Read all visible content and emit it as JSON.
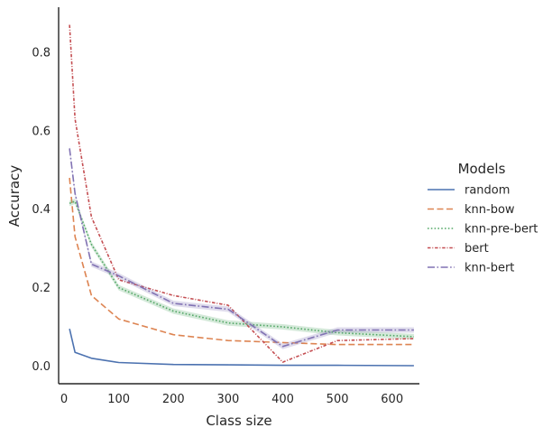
{
  "chart_data": {
    "type": "line",
    "title": "",
    "xlabel": "Class size",
    "ylabel": "Accuracy",
    "xlim": [
      -10,
      650
    ],
    "ylim": [
      -0.045,
      0.915
    ],
    "xticks": [
      0,
      100,
      200,
      300,
      400,
      500,
      600
    ],
    "yticks": [
      0.0,
      0.2,
      0.4,
      0.6,
      0.8
    ],
    "xtick_labels": [
      "0",
      "100",
      "200",
      "300",
      "400",
      "500",
      "600"
    ],
    "ytick_labels": [
      "0.0",
      "0.2",
      "0.4",
      "0.6",
      "0.8"
    ],
    "grid": false,
    "legend": {
      "title": "Models",
      "placement": "right"
    },
    "series": [
      {
        "name": "random",
        "color": "#4c72b0",
        "dash": "solid",
        "x": [
          10,
          20,
          50,
          100,
          200,
          300,
          400,
          500,
          640
        ],
        "y": [
          0.095,
          0.035,
          0.02,
          0.009,
          0.004,
          0.003,
          0.002,
          0.002,
          0.001
        ]
      },
      {
        "name": "knn-bow",
        "color": "#dd8452",
        "dash": "dashed",
        "x": [
          10,
          20,
          50,
          100,
          200,
          300,
          400,
          500,
          640
        ],
        "y": [
          0.48,
          0.33,
          0.18,
          0.12,
          0.08,
          0.065,
          0.06,
          0.055,
          0.055
        ]
      },
      {
        "name": "knn-pre-bert",
        "color": "#55a868",
        "dash": "dotted",
        "band": true,
        "x": [
          10,
          20,
          50,
          100,
          200,
          300,
          400,
          500,
          640
        ],
        "y": [
          0.415,
          0.42,
          0.31,
          0.2,
          0.14,
          0.11,
          0.1,
          0.085,
          0.075
        ]
      },
      {
        "name": "bert",
        "color": "#c44e52",
        "dash": "dash-dot-fine",
        "x": [
          10,
          20,
          50,
          100,
          200,
          300,
          400,
          500,
          640
        ],
        "y": [
          0.87,
          0.63,
          0.38,
          0.22,
          0.18,
          0.155,
          0.01,
          0.065,
          0.07
        ]
      },
      {
        "name": "knn-bert",
        "color": "#8172b3",
        "dash": "dashdot",
        "band": true,
        "x": [
          10,
          20,
          50,
          100,
          200,
          300,
          400,
          500,
          640
        ],
        "y": [
          0.555,
          0.44,
          0.26,
          0.23,
          0.16,
          0.145,
          0.05,
          0.092,
          0.092
        ]
      }
    ]
  }
}
